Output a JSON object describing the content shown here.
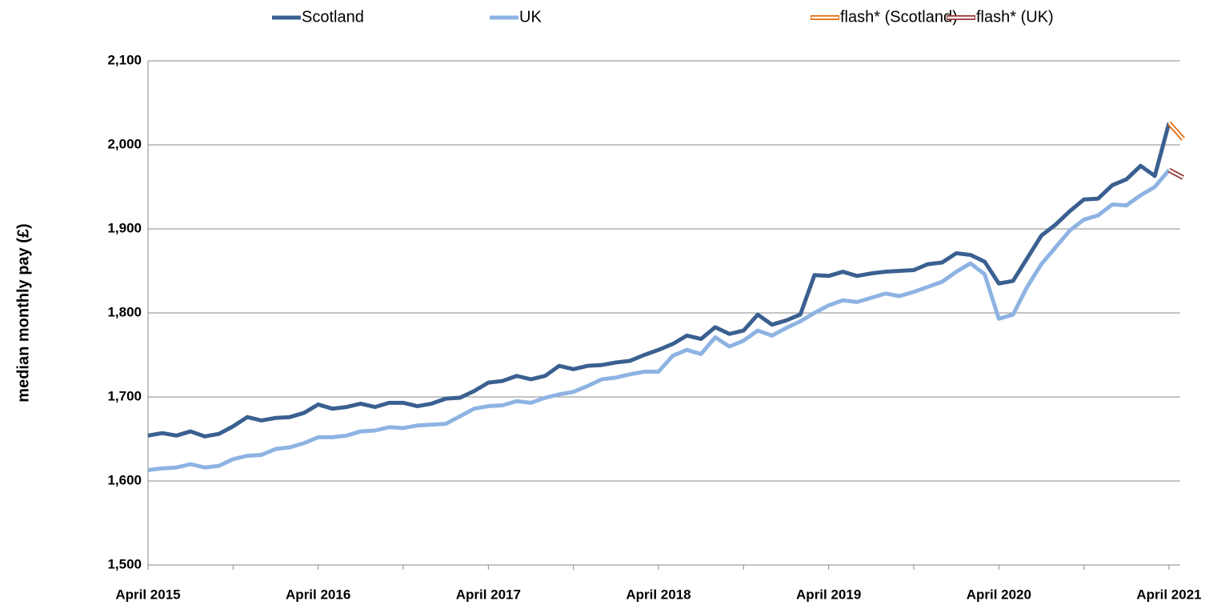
{
  "chart_data": {
    "type": "line",
    "y_label": "median monthly pay (£)",
    "categories": [
      "April 2015",
      null,
      null,
      null,
      null,
      null,
      null,
      null,
      null,
      null,
      null,
      null,
      "April 2016",
      null,
      null,
      null,
      null,
      null,
      null,
      null,
      null,
      null,
      null,
      null,
      "April 2017",
      null,
      null,
      null,
      null,
      null,
      null,
      null,
      null,
      null,
      null,
      null,
      "April 2018",
      null,
      null,
      null,
      null,
      null,
      null,
      null,
      null,
      null,
      null,
      null,
      "April 2019",
      null,
      null,
      null,
      null,
      null,
      null,
      null,
      null,
      null,
      null,
      null,
      "April 2020",
      null,
      null,
      null,
      null,
      null,
      null,
      null,
      null,
      null,
      null,
      null,
      "April 2021",
      null
    ],
    "series": [
      {
        "name": "Scotland",
        "color": "#3a6090",
        "values": [
          1654,
          1657,
          1654,
          1659,
          1653,
          1656,
          1665,
          1676,
          1672,
          1675,
          1676,
          1681,
          1691,
          1686,
          1688,
          1692,
          1688,
          1693,
          1693,
          1689,
          1692,
          1698,
          1699,
          1707,
          1717,
          1719,
          1725,
          1721,
          1725,
          1737,
          1733,
          1737,
          1738,
          1741,
          1743,
          1750,
          1756,
          1763,
          1773,
          1769,
          1783,
          1775,
          1779,
          1798,
          1786,
          1791,
          1798,
          1845,
          1844,
          1849,
          1844,
          1847,
          1849,
          1850,
          1851,
          1858,
          1860,
          1871,
          1869,
          1861,
          1835,
          1838,
          1865,
          1892,
          1905,
          1921,
          1935,
          1936,
          1952,
          1959,
          1975,
          1963,
          2026,
          null
        ]
      },
      {
        "name": "UK",
        "color": "#8db3e2",
        "values": [
          1613,
          1615,
          1616,
          1620,
          1616,
          1618,
          1626,
          1630,
          1631,
          1638,
          1640,
          1645,
          1652,
          1652,
          1654,
          1659,
          1660,
          1664,
          1663,
          1666,
          1667,
          1668,
          1677,
          1686,
          1689,
          1690,
          1695,
          1693,
          1699,
          1703,
          1706,
          1713,
          1721,
          1723,
          1727,
          1730,
          1730,
          1749,
          1756,
          1751,
          1771,
          1760,
          1767,
          1779,
          1773,
          1782,
          1790,
          1800,
          1809,
          1815,
          1813,
          1818,
          1823,
          1820,
          1825,
          1831,
          1837,
          1849,
          1859,
          1846,
          1793,
          1798,
          1831,
          1858,
          1878,
          1898,
          1911,
          1916,
          1929,
          1928,
          1940,
          1950,
          1970,
          null
        ]
      },
      {
        "name": "flash* (Scotland)",
        "color": "#e46c0a",
        "outlined": true,
        "values": [
          null,
          null,
          null,
          null,
          null,
          null,
          null,
          null,
          null,
          null,
          null,
          null,
          null,
          null,
          null,
          null,
          null,
          null,
          null,
          null,
          null,
          null,
          null,
          null,
          null,
          null,
          null,
          null,
          null,
          null,
          null,
          null,
          null,
          null,
          null,
          null,
          null,
          null,
          null,
          null,
          null,
          null,
          null,
          null,
          null,
          null,
          null,
          null,
          null,
          null,
          null,
          null,
          null,
          null,
          null,
          null,
          null,
          null,
          null,
          null,
          null,
          null,
          null,
          null,
          null,
          null,
          null,
          null,
          null,
          null,
          null,
          null,
          2026,
          2007
        ]
      },
      {
        "name": "flash* (UK)",
        "color": "#953735",
        "outlined": true,
        "values": [
          null,
          null,
          null,
          null,
          null,
          null,
          null,
          null,
          null,
          null,
          null,
          null,
          null,
          null,
          null,
          null,
          null,
          null,
          null,
          null,
          null,
          null,
          null,
          null,
          null,
          null,
          null,
          null,
          null,
          null,
          null,
          null,
          null,
          null,
          null,
          null,
          null,
          null,
          null,
          null,
          null,
          null,
          null,
          null,
          null,
          null,
          null,
          null,
          null,
          null,
          null,
          null,
          null,
          null,
          null,
          null,
          null,
          null,
          null,
          null,
          null,
          null,
          null,
          null,
          null,
          null,
          null,
          null,
          null,
          null,
          null,
          null,
          1970,
          1961
        ]
      }
    ],
    "ylim": [
      1500,
      2100
    ],
    "yticks": [
      {
        "value": 1500,
        "label": "1,500"
      },
      {
        "value": 1600,
        "label": "1,600"
      },
      {
        "value": 1700,
        "label": "1,700"
      },
      {
        "value": 1800,
        "label": "1,800"
      },
      {
        "value": 1900,
        "label": "1,900"
      },
      {
        "value": 2000,
        "label": "2,000"
      },
      {
        "value": 2100,
        "label": "2,100"
      }
    ],
    "grid": true,
    "legend": "top"
  }
}
